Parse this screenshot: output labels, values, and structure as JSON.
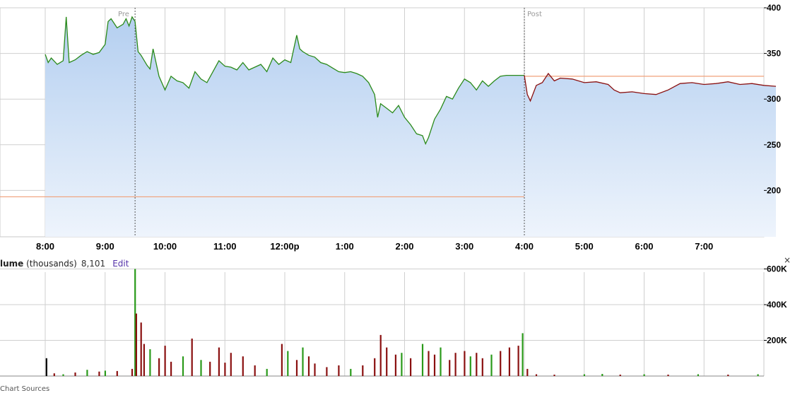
{
  "chart_data": [
    {
      "type": "area",
      "price_ticks": [
        "400",
        "350",
        "300",
        "250",
        "200"
      ],
      "price_tick_values": [
        400,
        350,
        300,
        250,
        200
      ],
      "x_labels": [
        "8:00",
        "9:00",
        "10:00",
        "11:00",
        "12:00p",
        "1:00",
        "2:00",
        "3:00",
        "4:00",
        "5:00",
        "6:00",
        "7:00"
      ],
      "ylim": [
        150,
        400
      ],
      "session_labels": {
        "pre": "Pre",
        "post": "Post"
      },
      "reference_lines": {
        "previous_close": 193,
        "current": 325
      },
      "series": [
        {
          "session": "regular",
          "color": "#2a8a1a",
          "points": [
            [
              0.0,
              349
            ],
            [
              0.05,
              340
            ],
            [
              0.1,
              345
            ],
            [
              0.2,
              338
            ],
            [
              0.3,
              342
            ],
            [
              0.35,
              390
            ],
            [
              0.4,
              340
            ],
            [
              0.5,
              343
            ],
            [
              0.6,
              348
            ],
            [
              0.7,
              352
            ],
            [
              0.8,
              349
            ],
            [
              0.9,
              351
            ],
            [
              1.0,
              360
            ],
            [
              1.05,
              385
            ],
            [
              1.1,
              388
            ],
            [
              1.2,
              378
            ],
            [
              1.3,
              382
            ],
            [
              1.35,
              388
            ],
            [
              1.4,
              380
            ],
            [
              1.45,
              390
            ],
            [
              1.5,
              385
            ],
            [
              1.55,
              352
            ],
            [
              1.6,
              348
            ],
            [
              1.7,
              337
            ],
            [
              1.75,
              333
            ],
            [
              1.8,
              355
            ],
            [
              1.85,
              340
            ],
            [
              1.9,
              325
            ],
            [
              2.0,
              310
            ],
            [
              2.1,
              325
            ],
            [
              2.2,
              320
            ],
            [
              2.3,
              318
            ],
            [
              2.4,
              312
            ],
            [
              2.5,
              330
            ],
            [
              2.6,
              322
            ],
            [
              2.7,
              318
            ],
            [
              2.8,
              330
            ],
            [
              2.9,
              342
            ],
            [
              3.0,
              336
            ],
            [
              3.1,
              335
            ],
            [
              3.2,
              332
            ],
            [
              3.3,
              340
            ],
            [
              3.4,
              332
            ],
            [
              3.5,
              335
            ],
            [
              3.6,
              338
            ],
            [
              3.7,
              330
            ],
            [
              3.8,
              345
            ],
            [
              3.9,
              338
            ],
            [
              4.0,
              343
            ],
            [
              4.1,
              340
            ],
            [
              4.15,
              355
            ],
            [
              4.2,
              370
            ],
            [
              4.25,
              355
            ],
            [
              4.3,
              352
            ],
            [
              4.4,
              348
            ],
            [
              4.5,
              346
            ],
            [
              4.6,
              340
            ],
            [
              4.7,
              338
            ],
            [
              4.8,
              334
            ],
            [
              4.9,
              330
            ],
            [
              5.0,
              329
            ],
            [
              5.1,
              330
            ],
            [
              5.2,
              328
            ],
            [
              5.3,
              325
            ],
            [
              5.4,
              318
            ],
            [
              5.5,
              305
            ],
            [
              5.55,
              280
            ],
            [
              5.6,
              295
            ],
            [
              5.7,
              290
            ],
            [
              5.8,
              285
            ],
            [
              5.9,
              293
            ],
            [
              6.0,
              280
            ],
            [
              6.1,
              272
            ],
            [
              6.2,
              262
            ],
            [
              6.3,
              260
            ],
            [
              6.35,
              251
            ],
            [
              6.4,
              258
            ],
            [
              6.5,
              278
            ],
            [
              6.6,
              289
            ],
            [
              6.7,
              303
            ],
            [
              6.8,
              300
            ],
            [
              6.9,
              312
            ],
            [
              7.0,
              322
            ],
            [
              7.1,
              318
            ],
            [
              7.2,
              310
            ],
            [
              7.3,
              320
            ],
            [
              7.4,
              314
            ],
            [
              7.5,
              320
            ],
            [
              7.6,
              325
            ],
            [
              7.7,
              326
            ],
            [
              8.0,
              326
            ]
          ]
        },
        {
          "session": "post",
          "color": "#8a1010",
          "points": [
            [
              8.0,
              326
            ],
            [
              8.05,
              305
            ],
            [
              8.1,
              298
            ],
            [
              8.2,
              315
            ],
            [
              8.3,
              318
            ],
            [
              8.4,
              328
            ],
            [
              8.5,
              320
            ],
            [
              8.6,
              323
            ],
            [
              8.8,
              322
            ],
            [
              9.0,
              318
            ],
            [
              9.2,
              319
            ],
            [
              9.4,
              316
            ],
            [
              9.5,
              310
            ],
            [
              9.6,
              307
            ],
            [
              9.8,
              308
            ],
            [
              10.0,
              306
            ],
            [
              10.2,
              305
            ],
            [
              10.4,
              310
            ],
            [
              10.6,
              317
            ],
            [
              10.8,
              318
            ],
            [
              11.0,
              316
            ],
            [
              11.2,
              317
            ],
            [
              11.4,
              319
            ],
            [
              11.6,
              316
            ],
            [
              11.8,
              317
            ],
            [
              12.0,
              315
            ],
            [
              12.2,
              314
            ]
          ]
        }
      ]
    },
    {
      "type": "bar",
      "header": {
        "label_bold": "lume",
        "label_rest": " (thousands)",
        "value": "8,101",
        "edit": "Edit"
      },
      "close_symbol": "×",
      "volume_ticks": [
        "600K",
        "400K",
        "200K"
      ],
      "volume_tick_values": [
        600,
        400,
        200
      ],
      "ylim": [
        0,
        620
      ],
      "volume_bars": [
        [
          0.02,
          100,
          "#000000"
        ],
        [
          0.15,
          15,
          "#8a1010"
        ],
        [
          0.3,
          10,
          "#2a9a1a"
        ],
        [
          0.5,
          20,
          "#8a1010"
        ],
        [
          0.7,
          35,
          "#2a9a1a"
        ],
        [
          0.9,
          25,
          "#8a1010"
        ],
        [
          1.0,
          30,
          "#2a9a1a"
        ],
        [
          1.2,
          28,
          "#8a1010"
        ],
        [
          1.45,
          40,
          "#8a1010"
        ],
        [
          1.5,
          600,
          "#2a9a1a"
        ],
        [
          1.52,
          350,
          "#8a1010"
        ],
        [
          1.6,
          300,
          "#8a1010"
        ],
        [
          1.65,
          180,
          "#8a1010"
        ],
        [
          1.75,
          150,
          "#2a9a1a"
        ],
        [
          1.9,
          100,
          "#8a1010"
        ],
        [
          2.0,
          170,
          "#8a1010"
        ],
        [
          2.1,
          80,
          "#8a1010"
        ],
        [
          2.3,
          110,
          "#2a9a1a"
        ],
        [
          2.45,
          210,
          "#8a1010"
        ],
        [
          2.6,
          90,
          "#2a9a1a"
        ],
        [
          2.75,
          80,
          "#8a1010"
        ],
        [
          2.9,
          160,
          "#8a1010"
        ],
        [
          3.0,
          75,
          "#8a1010"
        ],
        [
          3.1,
          130,
          "#8a1010"
        ],
        [
          3.3,
          110,
          "#8a1010"
        ],
        [
          3.5,
          60,
          "#8a1010"
        ],
        [
          3.7,
          40,
          "#2a9a1a"
        ],
        [
          3.95,
          180,
          "#8a1010"
        ],
        [
          4.05,
          140,
          "#2a9a1a"
        ],
        [
          4.2,
          90,
          "#8a1010"
        ],
        [
          4.3,
          160,
          "#2a9a1a"
        ],
        [
          4.4,
          110,
          "#8a1010"
        ],
        [
          4.5,
          70,
          "#8a1010"
        ],
        [
          4.7,
          50,
          "#8a1010"
        ],
        [
          4.9,
          60,
          "#8a1010"
        ],
        [
          5.1,
          40,
          "#2a9a1a"
        ],
        [
          5.3,
          60,
          "#8a1010"
        ],
        [
          5.5,
          100,
          "#8a1010"
        ],
        [
          5.6,
          230,
          "#8a1010"
        ],
        [
          5.7,
          160,
          "#8a1010"
        ],
        [
          5.85,
          120,
          "#8a1010"
        ],
        [
          5.95,
          130,
          "#2a9a1a"
        ],
        [
          6.1,
          100,
          "#8a1010"
        ],
        [
          6.3,
          180,
          "#2a9a1a"
        ],
        [
          6.4,
          140,
          "#8a1010"
        ],
        [
          6.5,
          120,
          "#8a1010"
        ],
        [
          6.6,
          160,
          "#2a9a1a"
        ],
        [
          6.75,
          90,
          "#8a1010"
        ],
        [
          6.85,
          130,
          "#8a1010"
        ],
        [
          7.0,
          140,
          "#8a1010"
        ],
        [
          7.1,
          110,
          "#2a9a1a"
        ],
        [
          7.2,
          130,
          "#8a1010"
        ],
        [
          7.3,
          100,
          "#8a1010"
        ],
        [
          7.45,
          120,
          "#2a9a1a"
        ],
        [
          7.6,
          140,
          "#8a1010"
        ],
        [
          7.75,
          160,
          "#8a1010"
        ],
        [
          7.9,
          170,
          "#8a1010"
        ],
        [
          7.97,
          240,
          "#2a9a1a"
        ],
        [
          8.05,
          40,
          "#8a1010"
        ],
        [
          8.2,
          10,
          "#8a1010"
        ],
        [
          8.5,
          8,
          "#8a1010"
        ],
        [
          9.0,
          10,
          "#2a9a1a"
        ],
        [
          9.3,
          12,
          "#2a9a1a"
        ],
        [
          9.6,
          8,
          "#8a1010"
        ],
        [
          10.0,
          10,
          "#2a9a1a"
        ],
        [
          10.4,
          8,
          "#8a1010"
        ],
        [
          10.9,
          10,
          "#2a9a1a"
        ],
        [
          11.4,
          8,
          "#8a1010"
        ],
        [
          11.9,
          10,
          "#2a9a1a"
        ]
      ]
    }
  ],
  "footer": {
    "text": "Chart Sources"
  }
}
